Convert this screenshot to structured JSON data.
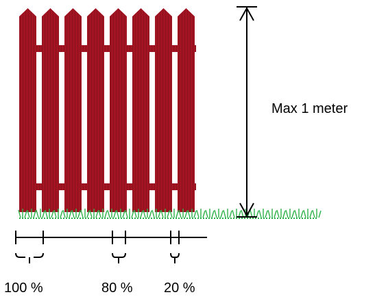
{
  "diagram": {
    "height_label": "Max 1 meter",
    "spacing_labels": [
      "100 %",
      "80 %",
      "20 %"
    ],
    "colors": {
      "fence": "#a31422",
      "fence_stripe": "#7f0f1a",
      "grass": "#2db24a",
      "line": "#000000"
    }
  }
}
